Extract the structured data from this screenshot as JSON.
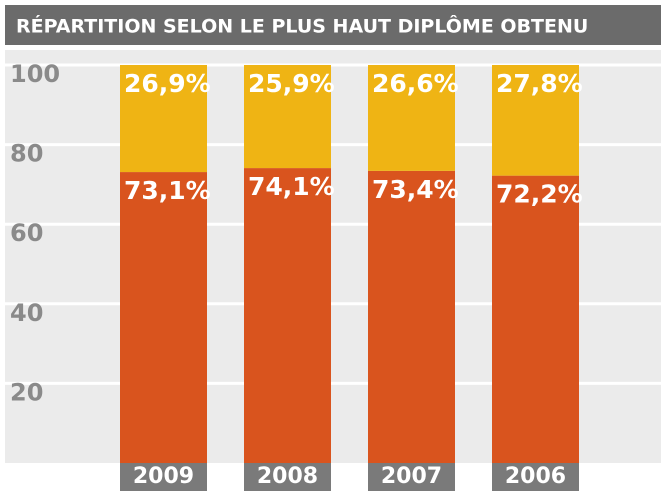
{
  "chart_data": {
    "type": "stacked-bar",
    "title": "RÉPARTITION SELON LE PLUS HAUT DIPLÔME OBTENU",
    "categories": [
      "2009",
      "2008",
      "2007",
      "2006"
    ],
    "series": [
      {
        "color": "#d9541e",
        "values": [
          73.1,
          74.1,
          73.4,
          72.2
        ],
        "value_labels": [
          "73,1%",
          "74,1%",
          "73,4%",
          "72,2%"
        ]
      },
      {
        "color": "#efb414",
        "values": [
          26.9,
          25.9,
          26.6,
          27.8
        ],
        "value_labels": [
          "26,9%",
          "25,9%",
          "26,6%",
          "27,8%"
        ]
      }
    ],
    "ylim": [
      0,
      100
    ],
    "yticks": [
      20,
      40,
      60,
      80,
      100
    ],
    "grid": true
  }
}
